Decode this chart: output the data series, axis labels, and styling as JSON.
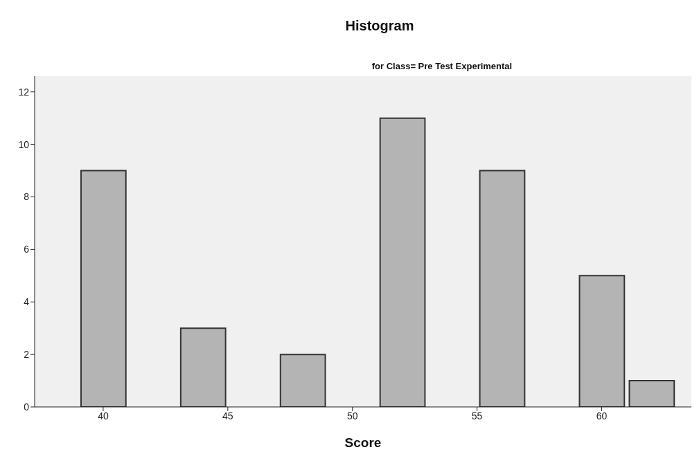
{
  "chart_data": {
    "type": "histogram",
    "title": "Histogram",
    "subtitle": "for Class= Pre Test Experimental",
    "xlabel": "Score",
    "bins": [
      39,
      41,
      43,
      45,
      47,
      49,
      51,
      53,
      55,
      57,
      59,
      61,
      63
    ],
    "values": [
      9,
      0,
      3,
      0,
      2,
      0,
      11,
      0,
      9,
      0,
      5,
      1
    ],
    "color": "#b4b4b4",
    "xlim": [
      37.25,
      63.6
    ],
    "xticks": [
      40,
      45,
      50,
      55,
      60
    ],
    "ylim": [
      0,
      12.6
    ],
    "yticks": [
      0,
      2,
      4,
      6,
      8,
      10,
      12
    ],
    "grid": false
  }
}
